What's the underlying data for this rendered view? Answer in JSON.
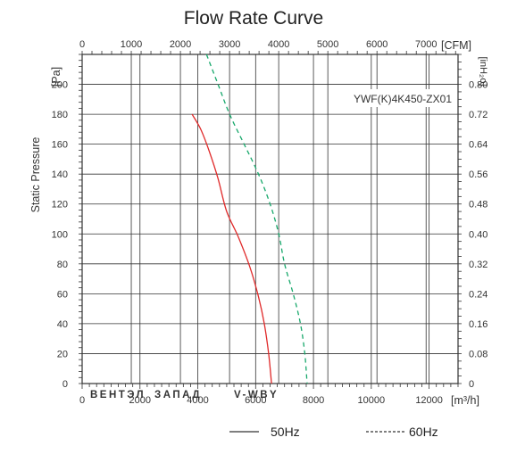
{
  "chart_data": {
    "type": "line",
    "title": "Flow Rate Curve",
    "model": "YWF(K)4K450-ZX01",
    "x_axis_bottom": {
      "unit": "[m³/h]",
      "range": [
        0,
        13000
      ],
      "ticks": [
        0,
        2000,
        4000,
        6000,
        8000,
        10000,
        12000
      ],
      "tick_labels": [
        "0",
        "2000",
        "4000",
        "6000",
        "8000",
        "10000",
        "12000"
      ]
    },
    "x_axis_top": {
      "unit": "[CFM]",
      "range": [
        0,
        7650
      ],
      "ticks": [
        0,
        1000,
        2000,
        3000,
        4000,
        5000,
        6000,
        7000
      ],
      "tick_labels": [
        "0",
        "1000",
        "2000",
        "3000",
        "4000",
        "5000",
        "6000",
        "7000"
      ]
    },
    "y_axis_left": {
      "label": "Static Pressure",
      "unit": "[Pa]",
      "range": [
        0,
        220
      ],
      "ticks": [
        0,
        20,
        40,
        60,
        80,
        100,
        120,
        140,
        160,
        180,
        200
      ],
      "tick_labels": [
        "0",
        "20",
        "40",
        "60",
        "80",
        "100",
        "120",
        "140",
        "160",
        "180",
        "200"
      ]
    },
    "y_axis_right": {
      "unit": "[inH₂o]",
      "range": [
        0,
        0.88
      ],
      "ticks": [
        0,
        0.08,
        0.16,
        0.24,
        0.32,
        0.4,
        0.48,
        0.56,
        0.64,
        0.72,
        0.8
      ],
      "tick_labels": [
        "0",
        "0.08",
        "0.16",
        "0.24",
        "0.32",
        "0.40",
        "0.48",
        "0.56",
        "0.64",
        "0.72",
        "0.80"
      ]
    },
    "grid": true,
    "series": [
      {
        "name": "50Hz",
        "style": "solid",
        "color": "#e02a2a",
        "points": [
          [
            3800,
            180
          ],
          [
            4100,
            170
          ],
          [
            4400,
            155
          ],
          [
            4700,
            137
          ],
          [
            5000,
            115
          ],
          [
            5400,
            98
          ],
          [
            5800,
            78
          ],
          [
            6100,
            58
          ],
          [
            6300,
            40
          ],
          [
            6450,
            20
          ],
          [
            6550,
            0
          ]
        ]
      },
      {
        "name": "60Hz",
        "style": "dashed",
        "color": "#17a86b",
        "points": [
          [
            4300,
            220
          ],
          [
            4700,
            200
          ],
          [
            5100,
            180
          ],
          [
            5600,
            160
          ],
          [
            6100,
            140
          ],
          [
            6500,
            120
          ],
          [
            6800,
            100
          ],
          [
            7000,
            80
          ],
          [
            7300,
            60
          ],
          [
            7550,
            40
          ],
          [
            7700,
            20
          ],
          [
            7780,
            0
          ]
        ]
      }
    ],
    "legend": {
      "placement": "bottom-center",
      "items": [
        "50Hz",
        "60Hz"
      ]
    }
  },
  "watermark": "ВЕНТЭЛ ЗАПАД V-WBY",
  "colors": {
    "axis": "#333333",
    "grid": "#333333",
    "text": "#222222"
  }
}
